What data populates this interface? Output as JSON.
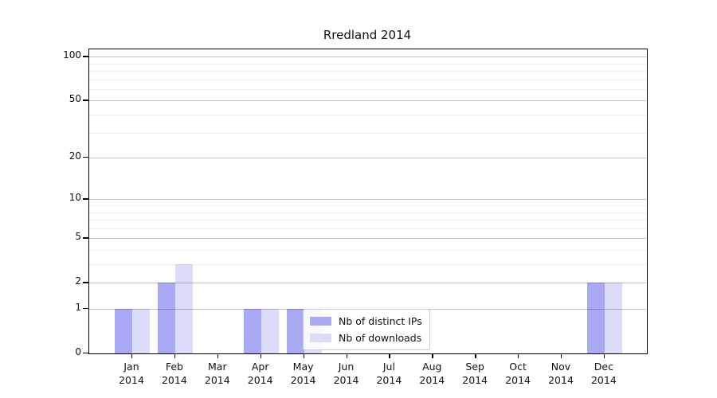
{
  "chart_data": {
    "type": "bar",
    "title": "Rredland 2014",
    "categories": [
      "Jan",
      "Feb",
      "Mar",
      "Apr",
      "May",
      "Jun",
      "Jul",
      "Aug",
      "Sep",
      "Oct",
      "Nov",
      "Dec"
    ],
    "year_label": "2014",
    "series": [
      {
        "name": "Nb of distinct IPs",
        "color": "#a9a9f4",
        "values": [
          1,
          2,
          0,
          1,
          1,
          0,
          0,
          0,
          0,
          0,
          0,
          2
        ]
      },
      {
        "name": "Nb of downloads",
        "color": "#dbdbfa",
        "values": [
          1,
          3,
          0,
          1,
          1,
          0,
          0,
          0,
          0,
          0,
          0,
          2
        ]
      }
    ],
    "yscale": "log1p",
    "yticks": [
      0,
      1,
      2,
      5,
      10,
      20,
      50,
      100
    ],
    "yminorticks": [
      3,
      4,
      6,
      7,
      8,
      9,
      30,
      40,
      60,
      70,
      80,
      90
    ],
    "ylim": [
      0,
      112
    ],
    "xlabel": "",
    "ylabel": "",
    "grid": true,
    "legend_position": "lower center-left inside plot"
  },
  "colors": {
    "background": "#ffffff",
    "axis": "#000000",
    "grid_major": "rgba(0,0,0,0.24)",
    "grid_minor": "rgba(0,0,0,0.07)",
    "legend_border": "#cccccc"
  }
}
